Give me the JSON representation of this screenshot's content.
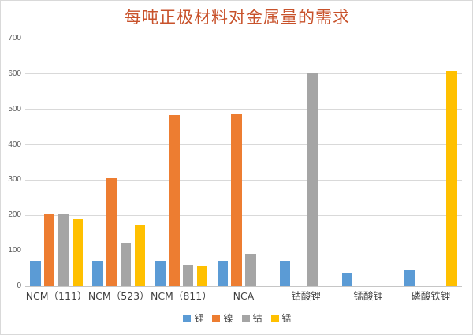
{
  "window": {
    "background": "#ffffff",
    "border_color": "#d9d9d9"
  },
  "chart_data": {
    "type": "bar",
    "title": "每吨正极材料对金属量的需求",
    "title_color": "#c8522b",
    "xlabel": "",
    "ylabel": "",
    "categories": [
      "NCM（111）",
      "NCM（523）",
      "NCM（811）",
      "NCA",
      "钴酸锂",
      "锰酸锂",
      "磷酸铁锂"
    ],
    "series": [
      {
        "name": "锂",
        "color": "#5B9BD5",
        "values": [
          72,
          72,
          72,
          72,
          71,
          38,
          44
        ]
      },
      {
        "name": "镍",
        "color": "#ED7D31",
        "values": [
          203,
          305,
          483,
          488,
          0,
          0,
          0
        ]
      },
      {
        "name": "钴",
        "color": "#A5A5A5",
        "values": [
          204,
          122,
          61,
          92,
          602,
          0,
          0
        ]
      },
      {
        "name": "锰",
        "color": "#FFC000",
        "values": [
          190,
          171,
          56,
          0,
          0,
          0,
          608
        ]
      }
    ],
    "ylim": [
      0,
      700
    ],
    "yticks": [
      0,
      100,
      200,
      300,
      400,
      500,
      600,
      700
    ],
    "grid": "horizontal",
    "gridline_color": "#d9d9d9",
    "axis_label_color": "#595959",
    "legend_position": "bottom",
    "legend_entries": [
      "锂",
      "镍",
      "钴",
      "锰"
    ]
  }
}
